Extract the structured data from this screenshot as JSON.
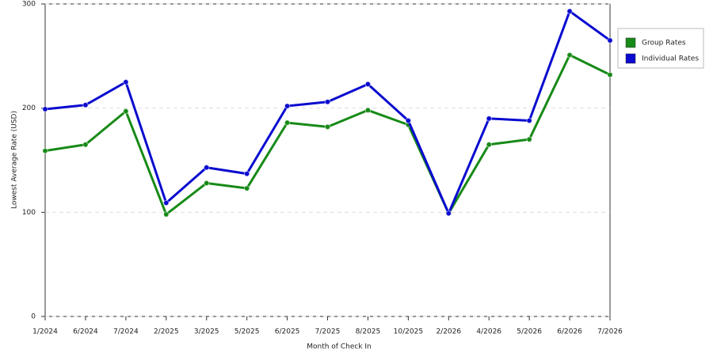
{
  "chart_data": {
    "type": "line",
    "x_label": "Month of Check In",
    "y_label": "Lowest Average Rate (USD)",
    "categories": [
      "1/2024",
      "6/2024",
      "7/2024",
      "2/2025",
      "3/2025",
      "5/2025",
      "6/2025",
      "7/2025",
      "8/2025",
      "10/2025",
      "2/2026",
      "4/2026",
      "5/2026",
      "6/2026",
      "7/2026"
    ],
    "series": [
      {
        "name": "Group Rates",
        "color": "#178a17",
        "values": [
          159,
          165,
          197,
          98,
          128,
          123,
          186,
          182,
          198,
          184,
          99,
          165,
          170,
          251,
          232
        ]
      },
      {
        "name": "Individual Rates",
        "color": "#0a0ad0",
        "values": [
          199,
          203,
          225,
          109,
          143,
          137,
          202,
          206,
          223,
          188,
          99,
          190,
          188,
          293,
          265
        ]
      }
    ],
    "ylim": [
      0,
      300
    ],
    "yticks": [
      0,
      100,
      200,
      300
    ],
    "grid": true,
    "legend": "right"
  }
}
